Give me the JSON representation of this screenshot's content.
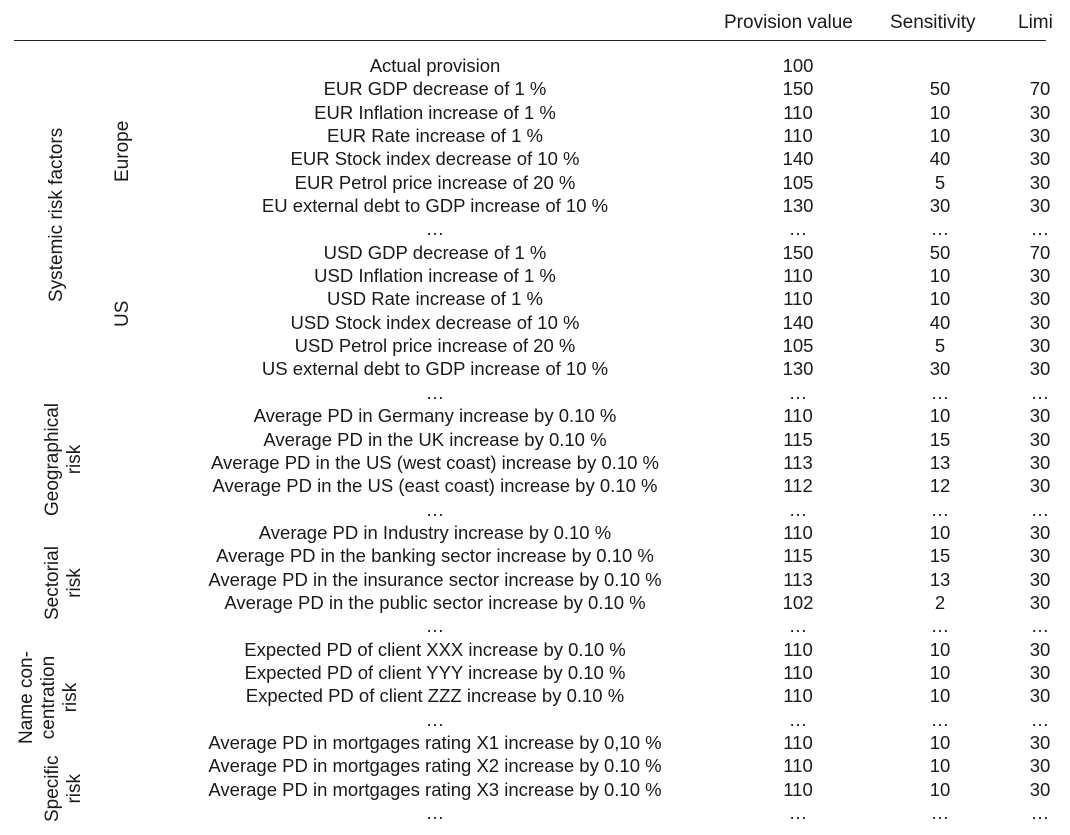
{
  "header": {
    "provision": "Provision value",
    "sensitivity": "Sensitivity",
    "limit": "Limi"
  },
  "group_labels": {
    "systemic": "Systemic risk factors",
    "europe": "Europe",
    "us": "US",
    "geographical_1": "Geographical",
    "geographical_2": "risk",
    "sectorial_1": "Sectorial",
    "sectorial_2": "risk",
    "name_1": "Name con-",
    "name_2": "centration",
    "name_3": "risk",
    "specific_1": "Specific",
    "specific_2": "risk"
  },
  "rows": [
    {
      "label": "Actual provision",
      "provision": "100",
      "sensitivity": "",
      "limit": ""
    },
    {
      "label": "EUR GDP decrease of 1 %",
      "provision": "150",
      "sensitivity": "50",
      "limit": "70"
    },
    {
      "label": "EUR Inflation increase of 1 %",
      "provision": "110",
      "sensitivity": "10",
      "limit": "30"
    },
    {
      "label": "EUR Rate increase of 1 %",
      "provision": "110",
      "sensitivity": "10",
      "limit": "30"
    },
    {
      "label": "EUR Stock index decrease of 10 %",
      "provision": "140",
      "sensitivity": "40",
      "limit": "30"
    },
    {
      "label": "EUR Petrol price increase of 20 %",
      "provision": "105",
      "sensitivity": "5",
      "limit": "30"
    },
    {
      "label": "EU external debt to GDP increase of 10 %",
      "provision": "130",
      "sensitivity": "30",
      "limit": "30"
    },
    {
      "label": "…",
      "provision": "…",
      "sensitivity": "…",
      "limit": "…"
    },
    {
      "label": "USD GDP decrease of 1 %",
      "provision": "150",
      "sensitivity": "50",
      "limit": "70"
    },
    {
      "label": "USD Inflation increase of 1 %",
      "provision": "110",
      "sensitivity": "10",
      "limit": "30"
    },
    {
      "label": "USD Rate increase of 1 %",
      "provision": "110",
      "sensitivity": "10",
      "limit": "30"
    },
    {
      "label": "USD Stock index decrease of 10 %",
      "provision": "140",
      "sensitivity": "40",
      "limit": "30"
    },
    {
      "label": "USD Petrol price increase of 20 %",
      "provision": "105",
      "sensitivity": "5",
      "limit": "30"
    },
    {
      "label": "US external debt to GDP increase of 10 %",
      "provision": "130",
      "sensitivity": "30",
      "limit": "30"
    },
    {
      "label": "…",
      "provision": "…",
      "sensitivity": "…",
      "limit": "…"
    },
    {
      "label": "Average PD in Germany increase by 0.10 %",
      "provision": "110",
      "sensitivity": "10",
      "limit": "30"
    },
    {
      "label": "Average PD in the UK increase by 0.10 %",
      "provision": "115",
      "sensitivity": "15",
      "limit": "30"
    },
    {
      "label": "Average PD in the US (west coast) increase by 0.10 %",
      "provision": "113",
      "sensitivity": "13",
      "limit": "30"
    },
    {
      "label": "Average PD in the US (east coast) increase by 0.10 %",
      "provision": "112",
      "sensitivity": "12",
      "limit": "30"
    },
    {
      "label": "…",
      "provision": "…",
      "sensitivity": "…",
      "limit": "…"
    },
    {
      "label": "Average PD in Industry increase by 0.10 %",
      "provision": "110",
      "sensitivity": "10",
      "limit": "30"
    },
    {
      "label": "Average PD in the banking sector increase by 0.10 %",
      "provision": "115",
      "sensitivity": "15",
      "limit": "30"
    },
    {
      "label": "Average PD in the insurance sector increase by 0.10 %",
      "provision": "113",
      "sensitivity": "13",
      "limit": "30"
    },
    {
      "label": "Average PD in the public sector increase by 0.10 %",
      "provision": "102",
      "sensitivity": "2",
      "limit": "30"
    },
    {
      "label": "…",
      "provision": "…",
      "sensitivity": "…",
      "limit": "…"
    },
    {
      "label": "Expected PD of client XXX increase by 0.10 %",
      "provision": "110",
      "sensitivity": "10",
      "limit": "30"
    },
    {
      "label": "Expected PD of client YYY increase by 0.10 %",
      "provision": "110",
      "sensitivity": "10",
      "limit": "30"
    },
    {
      "label": "Expected PD of client ZZZ increase by 0.10 %",
      "provision": "110",
      "sensitivity": "10",
      "limit": "30"
    },
    {
      "label": "…",
      "provision": "…",
      "sensitivity": "…",
      "limit": "…"
    },
    {
      "label": "Average PD in mortgages rating X1 increase by 0,10 %",
      "provision": "110",
      "sensitivity": "10",
      "limit": "30"
    },
    {
      "label": "Average PD in mortgages rating X2 increase by 0.10 %",
      "provision": "110",
      "sensitivity": "10",
      "limit": "30"
    },
    {
      "label": "Average PD in mortgages rating X3 increase by 0.10 %",
      "provision": "110",
      "sensitivity": "10",
      "limit": "30"
    },
    {
      "label": "…",
      "provision": "…",
      "sensitivity": "…",
      "limit": "…"
    }
  ]
}
